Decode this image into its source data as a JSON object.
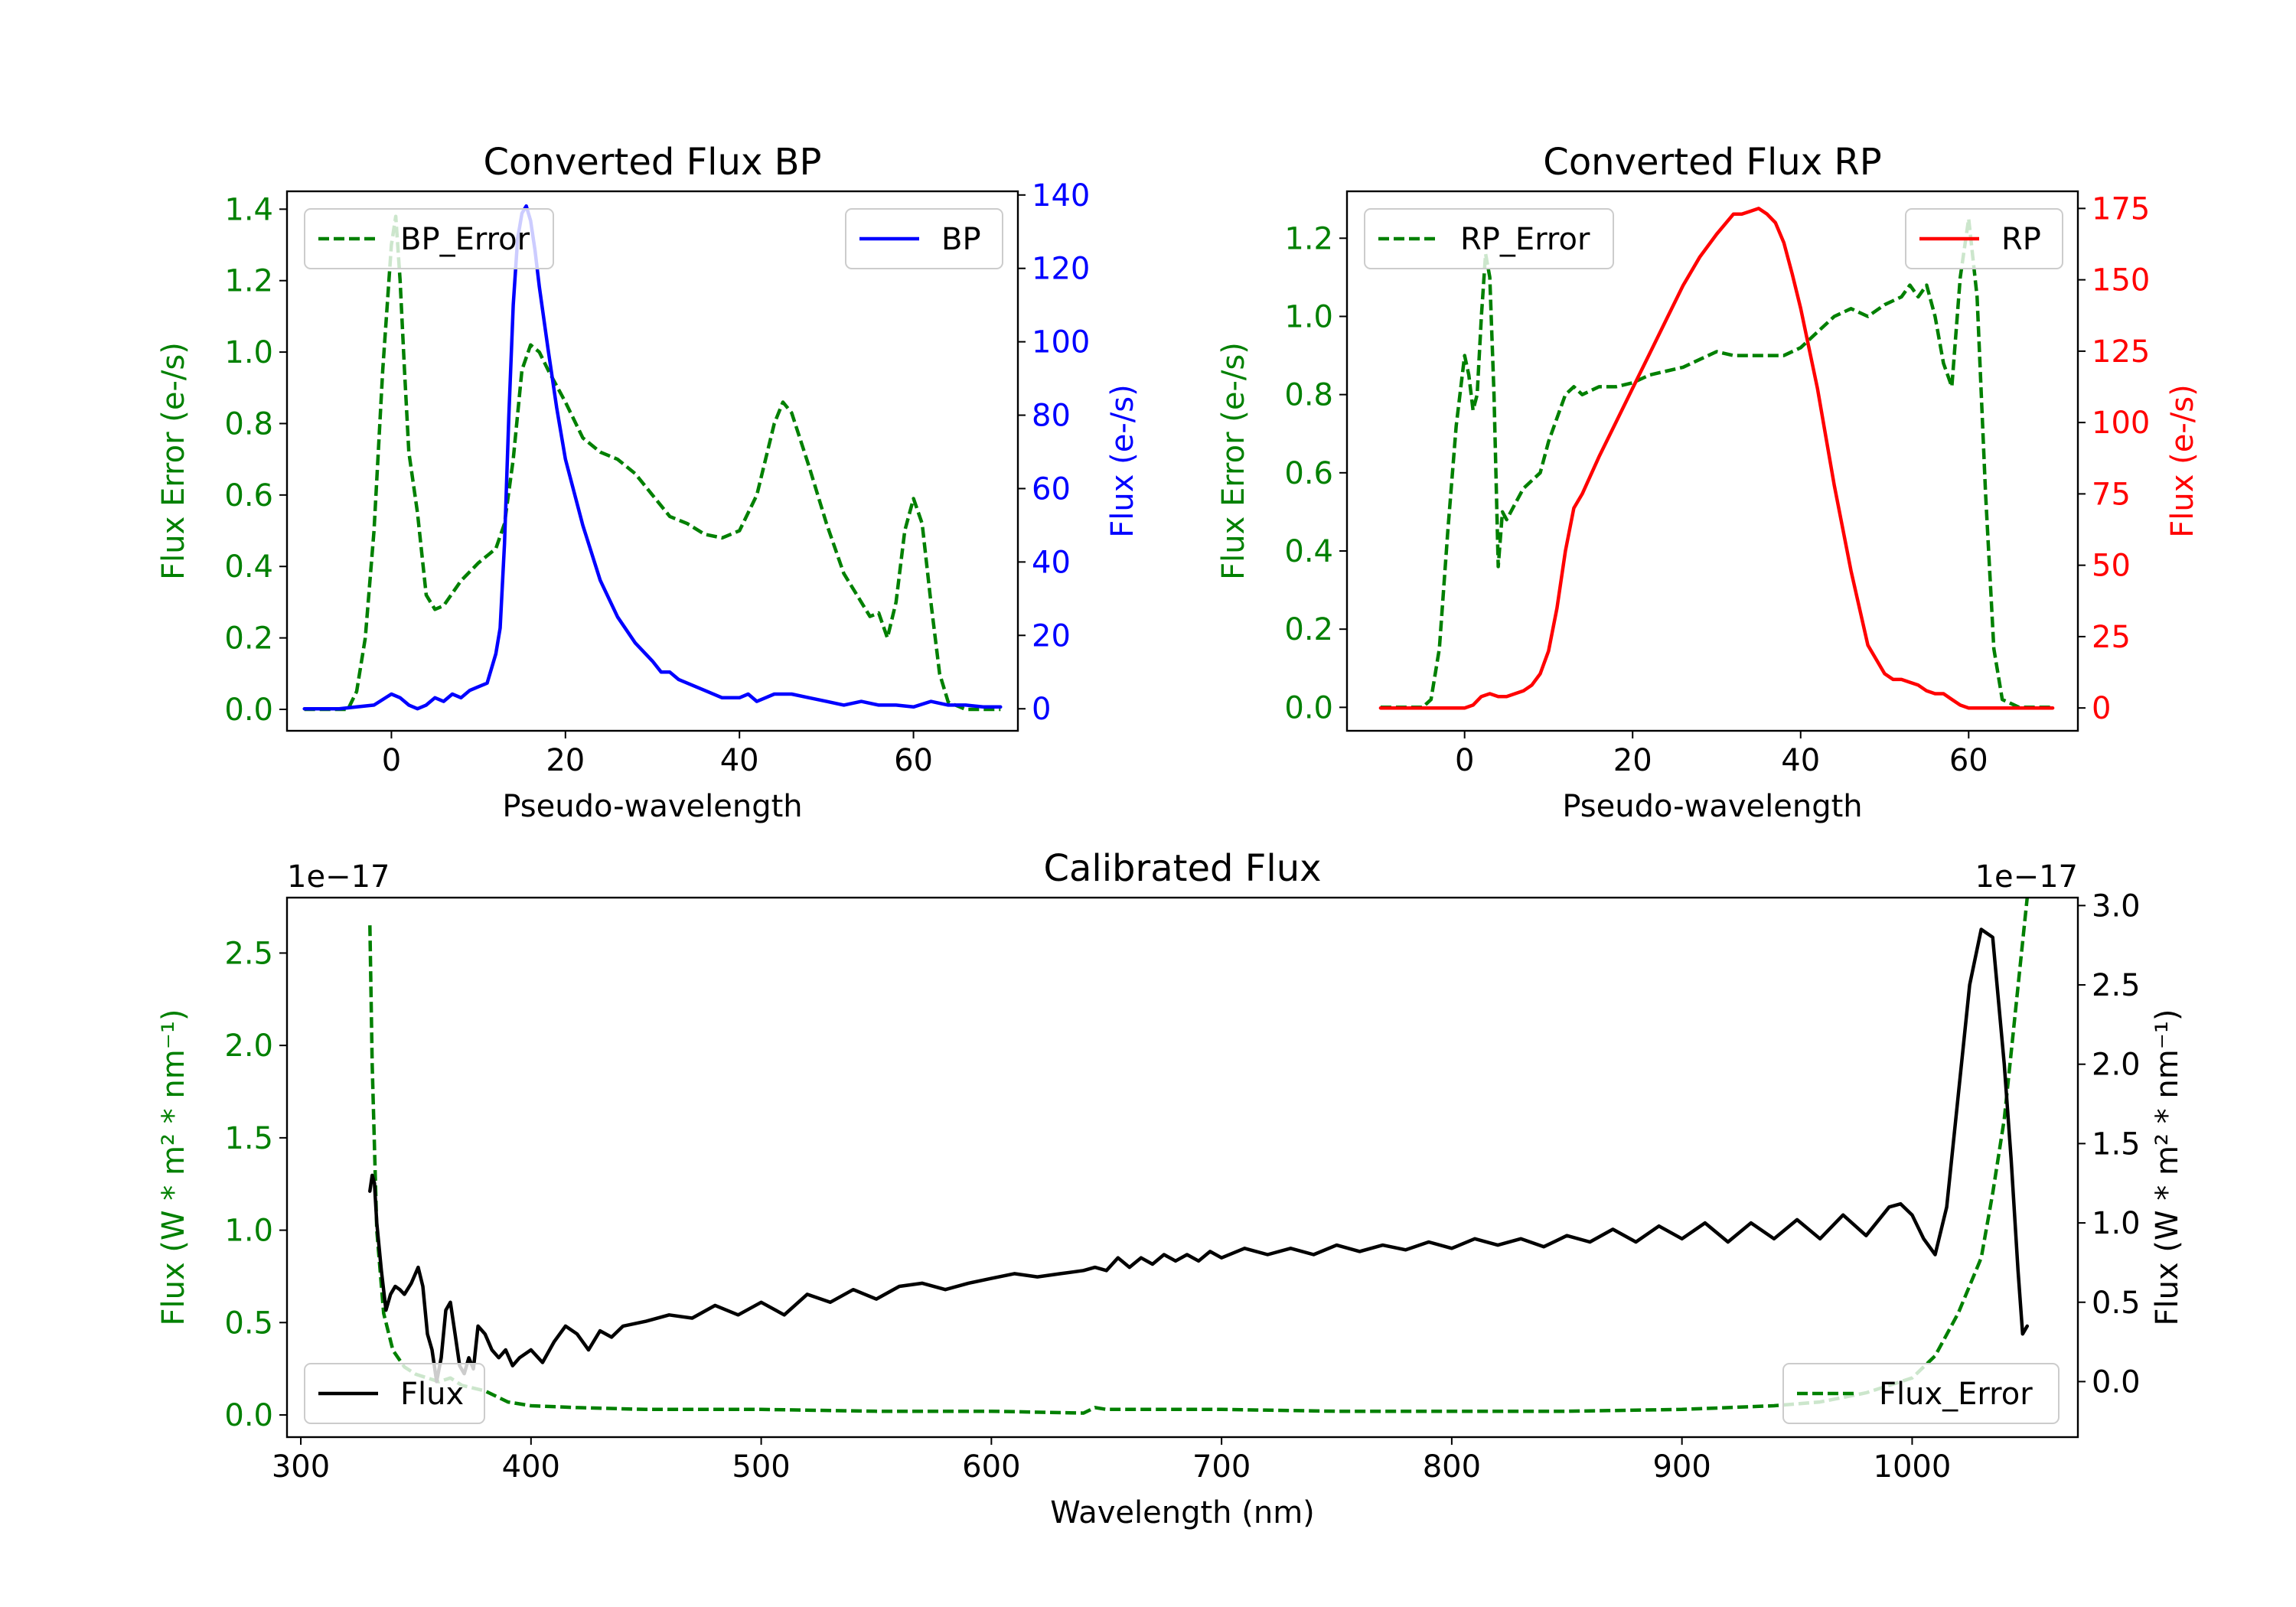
{
  "figure": {
    "colors": {
      "error": "#008000",
      "bp": "#0000ff",
      "rp": "#ff0000",
      "flux": "#000000",
      "axis": "#000000",
      "legend_border": "#cccccc"
    }
  },
  "chart_data": [
    {
      "id": "bp",
      "type": "line",
      "title": "Converted Flux BP",
      "xlabel": "Pseudo-wavelength",
      "ylabel_left": "Flux Error (e-/s)",
      "ylabel_right": "Flux (e-/s)",
      "xlim": [
        -12,
        72
      ],
      "xticks": [
        0,
        20,
        40,
        60
      ],
      "xtick_labels": [
        "0",
        "20",
        "40",
        "60"
      ],
      "ylim_left": [
        -0.06,
        1.45
      ],
      "yticks_left": [
        0.0,
        0.2,
        0.4,
        0.6,
        0.8,
        1.0,
        1.2,
        1.4
      ],
      "ytick_labels_left": [
        "0.0",
        "0.2",
        "0.4",
        "0.6",
        "0.8",
        "1.0",
        "1.2",
        "1.4"
      ],
      "ylim_right": [
        -6,
        141
      ],
      "yticks_right": [
        0,
        20,
        40,
        60,
        80,
        100,
        120,
        140
      ],
      "ytick_labels_right": [
        "0",
        "20",
        "40",
        "60",
        "80",
        "100",
        "120",
        "140"
      ],
      "legend_left_label": "BP_Error",
      "legend_left_position": "upper-left",
      "legend_right_label": "BP",
      "legend_right_position": "upper-right",
      "series": [
        {
          "name": "BP_Error",
          "axis": "left",
          "style": "dashed",
          "color": "error",
          "x": [
            -10,
            -5,
            -4,
            -3,
            -2,
            -1,
            0,
            0.5,
            1,
            1.5,
            2,
            3,
            4,
            5,
            6,
            8,
            10,
            12,
            13,
            14,
            15,
            16,
            17,
            18,
            20,
            22,
            24,
            26,
            28,
            30,
            32,
            34,
            36,
            38,
            40,
            42,
            44,
            45,
            46,
            48,
            50,
            52,
            54,
            55,
            56,
            57,
            58,
            59,
            60,
            61,
            62,
            63,
            64,
            66,
            68,
            70
          ],
          "y": [
            0.0,
            0.0,
            0.05,
            0.2,
            0.5,
            0.95,
            1.3,
            1.38,
            1.2,
            0.95,
            0.72,
            0.55,
            0.32,
            0.28,
            0.29,
            0.36,
            0.41,
            0.45,
            0.52,
            0.7,
            0.95,
            1.02,
            1.0,
            0.95,
            0.86,
            0.76,
            0.72,
            0.7,
            0.66,
            0.6,
            0.54,
            0.52,
            0.49,
            0.48,
            0.5,
            0.6,
            0.8,
            0.86,
            0.83,
            0.68,
            0.52,
            0.38,
            0.3,
            0.26,
            0.27,
            0.2,
            0.3,
            0.5,
            0.59,
            0.52,
            0.3,
            0.1,
            0.02,
            0.0,
            0.0,
            0.0
          ]
        },
        {
          "name": "BP",
          "axis": "right",
          "style": "solid",
          "color": "bp",
          "x": [
            -10,
            -6,
            -4,
            -2,
            0,
            1,
            2,
            3,
            4,
            5,
            6,
            7,
            8,
            9,
            10,
            11,
            12,
            12.5,
            13,
            13.5,
            14,
            14.5,
            15,
            15.5,
            16,
            16.5,
            17,
            18,
            19,
            20,
            22,
            24,
            26,
            28,
            30,
            31,
            32,
            33,
            34,
            36,
            38,
            40,
            41,
            42,
            43,
            44,
            46,
            48,
            50,
            52,
            54,
            56,
            58,
            60,
            62,
            64,
            66,
            68,
            70
          ],
          "y": [
            0,
            0,
            0.5,
            1,
            4,
            3,
            1,
            0,
            1,
            3,
            2,
            4,
            3,
            5,
            6,
            7,
            15,
            22,
            45,
            80,
            110,
            128,
            135,
            137,
            133,
            125,
            115,
            98,
            82,
            68,
            50,
            35,
            25,
            18,
            13,
            10,
            10,
            8,
            7,
            5,
            3,
            3,
            4,
            2,
            3,
            4,
            4,
            3,
            2,
            1,
            2,
            1,
            1,
            0.5,
            2,
            1,
            1,
            0.5,
            0.5
          ]
        }
      ]
    },
    {
      "id": "rp",
      "type": "line",
      "title": "Converted Flux RP",
      "xlabel": "Pseudo-wavelength",
      "ylabel_left": "Flux Error (e-/s)",
      "ylabel_right": "Flux (e-/s)",
      "xlim": [
        -14,
        73
      ],
      "xticks": [
        0,
        20,
        40,
        60
      ],
      "xtick_labels": [
        "0",
        "20",
        "40",
        "60"
      ],
      "ylim_left": [
        -0.06,
        1.32
      ],
      "yticks_left": [
        0.0,
        0.2,
        0.4,
        0.6,
        0.8,
        1.0,
        1.2
      ],
      "ytick_labels_left": [
        "0.0",
        "0.2",
        "0.4",
        "0.6",
        "0.8",
        "1.0",
        "1.2"
      ],
      "ylim_right": [
        -8,
        181
      ],
      "yticks_right": [
        0,
        25,
        50,
        75,
        100,
        125,
        150,
        175
      ],
      "ytick_labels_right": [
        "0",
        "25",
        "50",
        "75",
        "100",
        "125",
        "150",
        "175"
      ],
      "legend_left_label": "RP_Error",
      "legend_left_position": "upper-left",
      "legend_right_label": "RP",
      "legend_right_position": "upper-right",
      "series": [
        {
          "name": "RP_Error",
          "axis": "left",
          "style": "dashed",
          "color": "error",
          "x": [
            -10,
            -5,
            -4,
            -3,
            -2,
            -1,
            0,
            0.5,
            1,
            1.5,
            2,
            2.5,
            3,
            3.5,
            4,
            4.5,
            5,
            6,
            7,
            8,
            9,
            10,
            11,
            12,
            13,
            14,
            16,
            18,
            20,
            22,
            24,
            26,
            28,
            30,
            32,
            34,
            36,
            38,
            40,
            42,
            44,
            46,
            48,
            50,
            52,
            53,
            54,
            55,
            56,
            57,
            58,
            59,
            60,
            61,
            62,
            63,
            64,
            66,
            68,
            70
          ],
          "y": [
            0.0,
            0.0,
            0.02,
            0.15,
            0.45,
            0.72,
            0.9,
            0.85,
            0.76,
            0.8,
            1.0,
            1.16,
            1.1,
            0.8,
            0.36,
            0.5,
            0.48,
            0.52,
            0.56,
            0.58,
            0.6,
            0.68,
            0.74,
            0.8,
            0.82,
            0.8,
            0.82,
            0.82,
            0.83,
            0.85,
            0.86,
            0.87,
            0.89,
            0.91,
            0.9,
            0.9,
            0.9,
            0.9,
            0.92,
            0.96,
            1.0,
            1.02,
            1.0,
            1.03,
            1.05,
            1.08,
            1.05,
            1.08,
            1.0,
            0.88,
            0.82,
            1.1,
            1.25,
            1.05,
            0.55,
            0.15,
            0.02,
            0.0,
            0.0,
            0.0
          ]
        },
        {
          "name": "RP",
          "axis": "right",
          "style": "solid",
          "color": "rp",
          "x": [
            -10,
            -6,
            -4,
            -2,
            0,
            1,
            2,
            3,
            4,
            5,
            6,
            7,
            8,
            9,
            10,
            11,
            12,
            13,
            14,
            16,
            18,
            20,
            22,
            24,
            26,
            28,
            30,
            32,
            33,
            34,
            35,
            36,
            37,
            38,
            39,
            40,
            42,
            44,
            46,
            48,
            50,
            51,
            52,
            53,
            54,
            55,
            56,
            57,
            58,
            59,
            60,
            62,
            64,
            66,
            68,
            70
          ],
          "y": [
            0,
            0,
            0,
            0,
            0,
            1,
            4,
            5,
            4,
            4,
            5,
            6,
            8,
            12,
            20,
            35,
            55,
            70,
            75,
            88,
            100,
            112,
            124,
            136,
            148,
            158,
            166,
            173,
            173,
            174,
            175,
            173,
            170,
            163,
            152,
            140,
            112,
            78,
            48,
            22,
            12,
            10,
            10,
            9,
            8,
            6,
            5,
            5,
            3,
            1,
            0,
            0,
            0,
            0,
            0,
            0
          ]
        }
      ]
    },
    {
      "id": "calibrated",
      "type": "line",
      "title": "Calibrated Flux",
      "xlabel": "Wavelength (nm)",
      "ylabel_left": "Flux (W * m² * nm⁻¹)",
      "ylabel_right": "Flux (W * m² * nm⁻¹)",
      "scale_left": "1e−17",
      "scale_right": "1e−17",
      "xlim": [
        294,
        1072
      ],
      "xticks": [
        300,
        400,
        500,
        600,
        700,
        800,
        900,
        1000
      ],
      "xtick_labels": [
        "300",
        "400",
        "500",
        "600",
        "700",
        "800",
        "900",
        "1000"
      ],
      "ylim_left": [
        -0.12,
        2.8
      ],
      "yticks_left": [
        0.0,
        0.5,
        1.0,
        1.5,
        2.0,
        2.5
      ],
      "ytick_labels_left": [
        "0.0",
        "0.5",
        "1.0",
        "1.5",
        "2.0",
        "2.5"
      ],
      "ylim_right": [
        -0.35,
        3.05
      ],
      "yticks_right": [
        0.0,
        0.5,
        1.0,
        1.5,
        2.0,
        2.5,
        3.0
      ],
      "ytick_labels_right": [
        "0.0",
        "0.5",
        "1.0",
        "1.5",
        "2.0",
        "2.5",
        "3.0"
      ],
      "legend_left_label": "Flux",
      "legend_left_position": "lower-left",
      "legend_right_label": "Flux_Error",
      "legend_right_position": "lower-right",
      "series": [
        {
          "name": "Flux_Error",
          "axis": "left",
          "style": "dashed",
          "color": "error",
          "x": [
            330,
            331,
            333,
            336,
            340,
            345,
            350,
            355,
            360,
            365,
            370,
            380,
            390,
            400,
            420,
            450,
            500,
            550,
            600,
            640,
            645,
            650,
            700,
            750,
            800,
            850,
            900,
            940,
            960,
            980,
            1000,
            1010,
            1020,
            1030,
            1035,
            1040,
            1045,
            1050
          ],
          "y": [
            2.65,
            1.9,
            1.0,
            0.55,
            0.35,
            0.26,
            0.22,
            0.2,
            0.18,
            0.2,
            0.16,
            0.13,
            0.07,
            0.05,
            0.04,
            0.03,
            0.03,
            0.02,
            0.02,
            0.01,
            0.04,
            0.03,
            0.03,
            0.02,
            0.02,
            0.02,
            0.03,
            0.05,
            0.07,
            0.12,
            0.2,
            0.32,
            0.55,
            0.85,
            1.2,
            1.6,
            2.2,
            2.8
          ]
        },
        {
          "name": "Flux",
          "axis": "right",
          "style": "solid",
          "color": "flux",
          "x": [
            330,
            331,
            332,
            333,
            335,
            337,
            339,
            341,
            343,
            345,
            348,
            351,
            353,
            355,
            357,
            359,
            361,
            363,
            365,
            367,
            369,
            371,
            373,
            375,
            377,
            380,
            383,
            386,
            389,
            392,
            395,
            400,
            405,
            410,
            415,
            420,
            425,
            430,
            435,
            440,
            450,
            460,
            470,
            480,
            490,
            500,
            510,
            520,
            530,
            540,
            550,
            560,
            570,
            580,
            590,
            600,
            610,
            620,
            630,
            640,
            645,
            650,
            655,
            660,
            665,
            670,
            675,
            680,
            685,
            690,
            695,
            700,
            710,
            720,
            730,
            740,
            750,
            760,
            770,
            780,
            790,
            800,
            810,
            820,
            830,
            840,
            850,
            860,
            870,
            880,
            890,
            900,
            910,
            920,
            930,
            940,
            950,
            960,
            970,
            980,
            990,
            995,
            1000,
            1005,
            1010,
            1015,
            1020,
            1025,
            1030,
            1035,
            1040,
            1043,
            1046,
            1048,
            1050
          ],
          "y": [
            1.2,
            1.3,
            1.25,
            1.0,
            0.7,
            0.45,
            0.55,
            0.6,
            0.58,
            0.55,
            0.62,
            0.72,
            0.6,
            0.3,
            0.2,
            0.0,
            0.15,
            0.45,
            0.5,
            0.3,
            0.1,
            0.05,
            0.15,
            0.08,
            0.35,
            0.3,
            0.2,
            0.15,
            0.2,
            0.1,
            0.15,
            0.2,
            0.12,
            0.25,
            0.35,
            0.3,
            0.2,
            0.32,
            0.28,
            0.35,
            0.38,
            0.42,
            0.4,
            0.48,
            0.42,
            0.5,
            0.42,
            0.55,
            0.5,
            0.58,
            0.52,
            0.6,
            0.62,
            0.58,
            0.62,
            0.65,
            0.68,
            0.66,
            0.68,
            0.7,
            0.72,
            0.7,
            0.78,
            0.72,
            0.78,
            0.74,
            0.8,
            0.76,
            0.8,
            0.76,
            0.82,
            0.78,
            0.84,
            0.8,
            0.84,
            0.8,
            0.86,
            0.82,
            0.86,
            0.83,
            0.88,
            0.84,
            0.9,
            0.86,
            0.9,
            0.85,
            0.92,
            0.88,
            0.96,
            0.88,
            0.98,
            0.9,
            1.0,
            0.88,
            1.0,
            0.9,
            1.02,
            0.9,
            1.05,
            0.92,
            1.1,
            1.12,
            1.05,
            0.9,
            0.8,
            1.1,
            1.8,
            2.5,
            2.85,
            2.8,
            2.0,
            1.4,
            0.7,
            0.3,
            0.35
          ]
        }
      ]
    }
  ]
}
